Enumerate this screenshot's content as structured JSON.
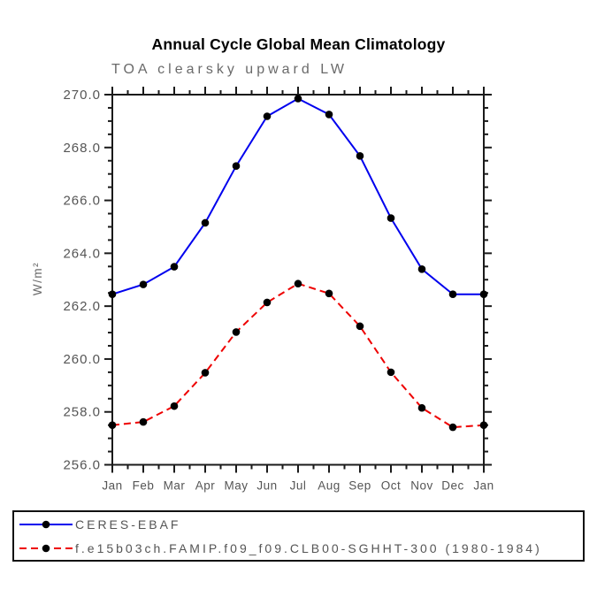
{
  "chart_data": {
    "type": "line",
    "title": "Annual Cycle Global Mean Climatology",
    "subtitle": "TOA clearsky upward LW",
    "ylabel": "W/m²",
    "xlabel": "",
    "categories": [
      "Jan",
      "Feb",
      "Mar",
      "Apr",
      "May",
      "Jun",
      "Jul",
      "Aug",
      "Sep",
      "Oct",
      "Nov",
      "Dec",
      "Jan"
    ],
    "ylim": [
      256.0,
      270.0
    ],
    "ytick_major": 2.0,
    "ytick_minor": 0.5,
    "ytick_decimals": 1,
    "grid": false,
    "legend_position": "bottom-left-box",
    "series": [
      {
        "name": "CERES-EBAF",
        "color": "#0000ee",
        "line_style": "solid",
        "dash": "",
        "marker": "filled-circle",
        "marker_color": "#000000",
        "values": [
          262.45,
          262.82,
          263.49,
          265.15,
          267.3,
          269.18,
          269.85,
          269.25,
          267.68,
          265.33,
          263.4,
          262.45,
          262.45
        ]
      },
      {
        "name": "f.e15b03ch.FAMIP.f09_f09.CLB00-SGHHT-300 (1980-1984)",
        "color": "#ee0000",
        "line_style": "dashed",
        "dash": "8 5",
        "marker": "filled-circle",
        "marker_color": "#000000",
        "values": [
          257.5,
          257.62,
          258.22,
          259.48,
          261.02,
          262.14,
          262.85,
          262.48,
          261.24,
          259.5,
          258.15,
          257.42,
          257.5
        ]
      }
    ]
  },
  "colors": {
    "background": "#ffffff",
    "axis": "#1a1a1a",
    "tick_label": "#555555",
    "title": "#000000",
    "subtitle": "#6a6a6a"
  }
}
